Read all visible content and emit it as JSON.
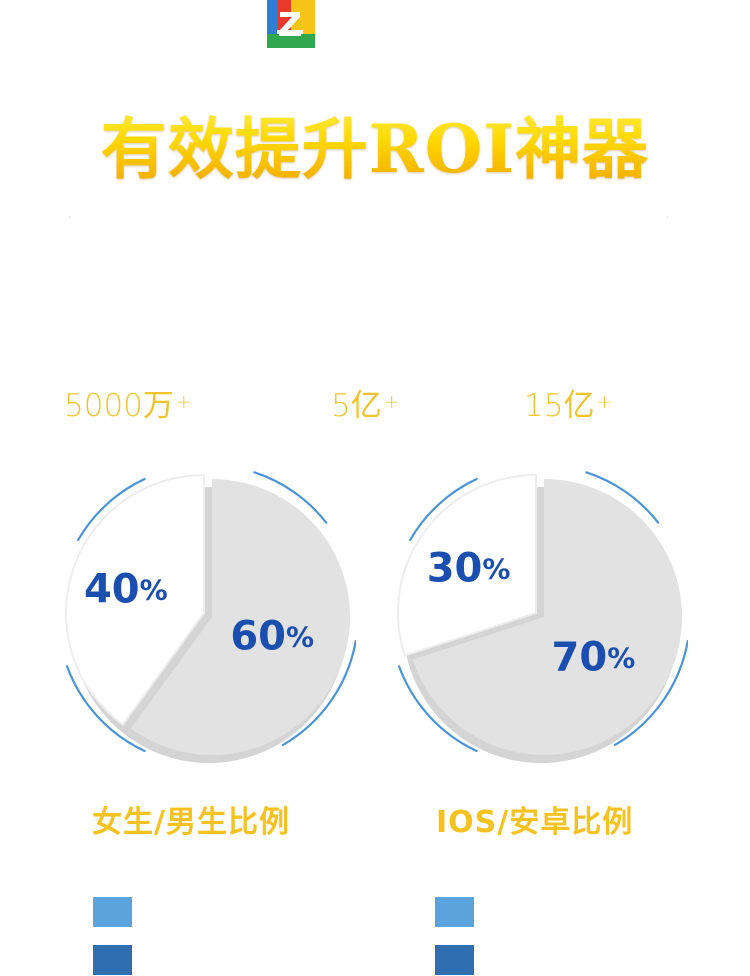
{
  "headline": "有效提升ROI神器",
  "stats": [
    {
      "value": "5000万",
      "suffix": "+"
    },
    {
      "value": "5亿",
      "suffix": "+"
    },
    {
      "value": "15亿",
      "suffix": "+"
    }
  ],
  "colors": {
    "headline_gold": "#ffd800",
    "stat_gold": "#f0c430",
    "label_gold": "#f5c21f",
    "percent_blue": "#1a4fb0",
    "slice_major": "#e2e2e2",
    "slice_minor": "#ffffff",
    "ring_blue": "#4c94d8",
    "legend_light": "#5aa3dc",
    "legend_dark": "#2f6db1"
  },
  "chart_data": [
    {
      "type": "pie",
      "title": "女生/男生比例",
      "slices": [
        {
          "label": "40%",
          "value": 40
        },
        {
          "label": "60%",
          "value": 60
        }
      ]
    },
    {
      "type": "pie",
      "title": "IOS/安卓比例",
      "slices": [
        {
          "label": "30%",
          "value": 30
        },
        {
          "label": "70%",
          "value": 70
        }
      ]
    }
  ]
}
